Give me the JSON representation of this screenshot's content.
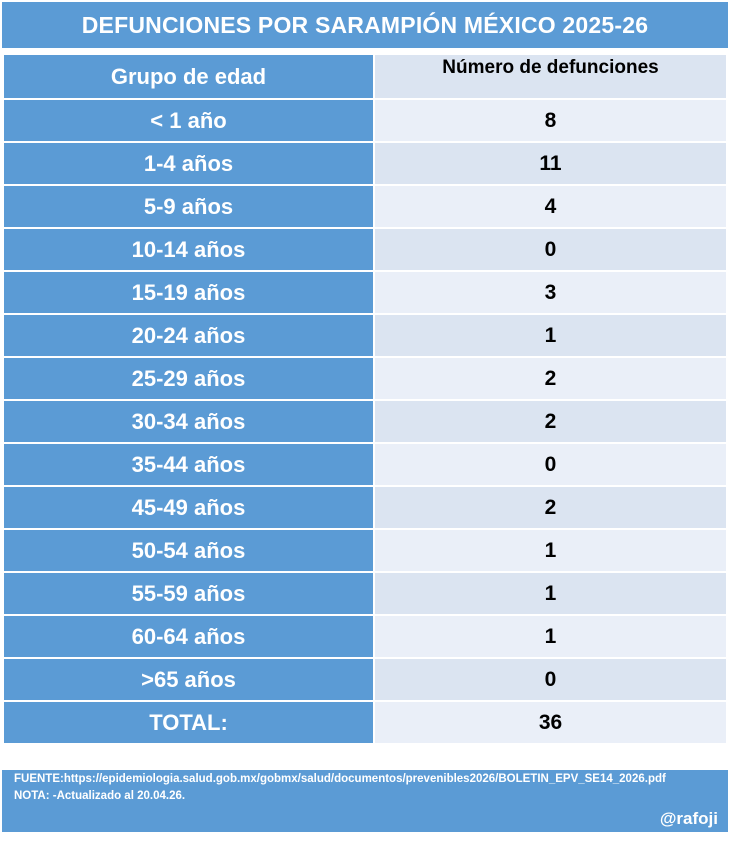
{
  "title": "DEFUNCIONES POR SARAMPIÓN MÉXICO 2025-26",
  "colors": {
    "header_blue": "#5b9bd5",
    "row_light": "#dbe4f1",
    "row_lighter": "#eaeff8"
  },
  "chart_data": {
    "type": "table",
    "title": "DEFUNCIONES POR SARAMPIÓN MÉXICO 2025-26",
    "columns": [
      "Grupo de edad",
      "Número de defunciones"
    ],
    "rows": [
      {
        "group": "< 1 año",
        "deaths": "8"
      },
      {
        "group": "1-4 años",
        "deaths": "11"
      },
      {
        "group": "5-9 años",
        "deaths": "4"
      },
      {
        "group": "10-14 años",
        "deaths": "0"
      },
      {
        "group": "15-19 años",
        "deaths": "3"
      },
      {
        "group": "20-24 años",
        "deaths": "1"
      },
      {
        "group": "25-29 años",
        "deaths": "2"
      },
      {
        "group": "30-34 años",
        "deaths": "2"
      },
      {
        "group": "35-44 años",
        "deaths": "0"
      },
      {
        "group": "45-49 años",
        "deaths": "2"
      },
      {
        "group": "50-54 años",
        "deaths": "1"
      },
      {
        "group": "55-59 años",
        "deaths": "1"
      },
      {
        "group": "60-64 años",
        "deaths": "1"
      },
      {
        "group": ">65 años",
        "deaths": "0"
      }
    ],
    "total": {
      "label": "TOTAL:",
      "value": "36"
    }
  },
  "footer": {
    "source": "FUENTE:https://epidemiologia.salud.gob.mx/gobmx/salud/documentos/prevenibles2026/BOLETIN_EPV_SE14_2026.pdf",
    "note": "NOTA: -Actualizado al 20.04.26.",
    "handle": "@rafoji"
  }
}
